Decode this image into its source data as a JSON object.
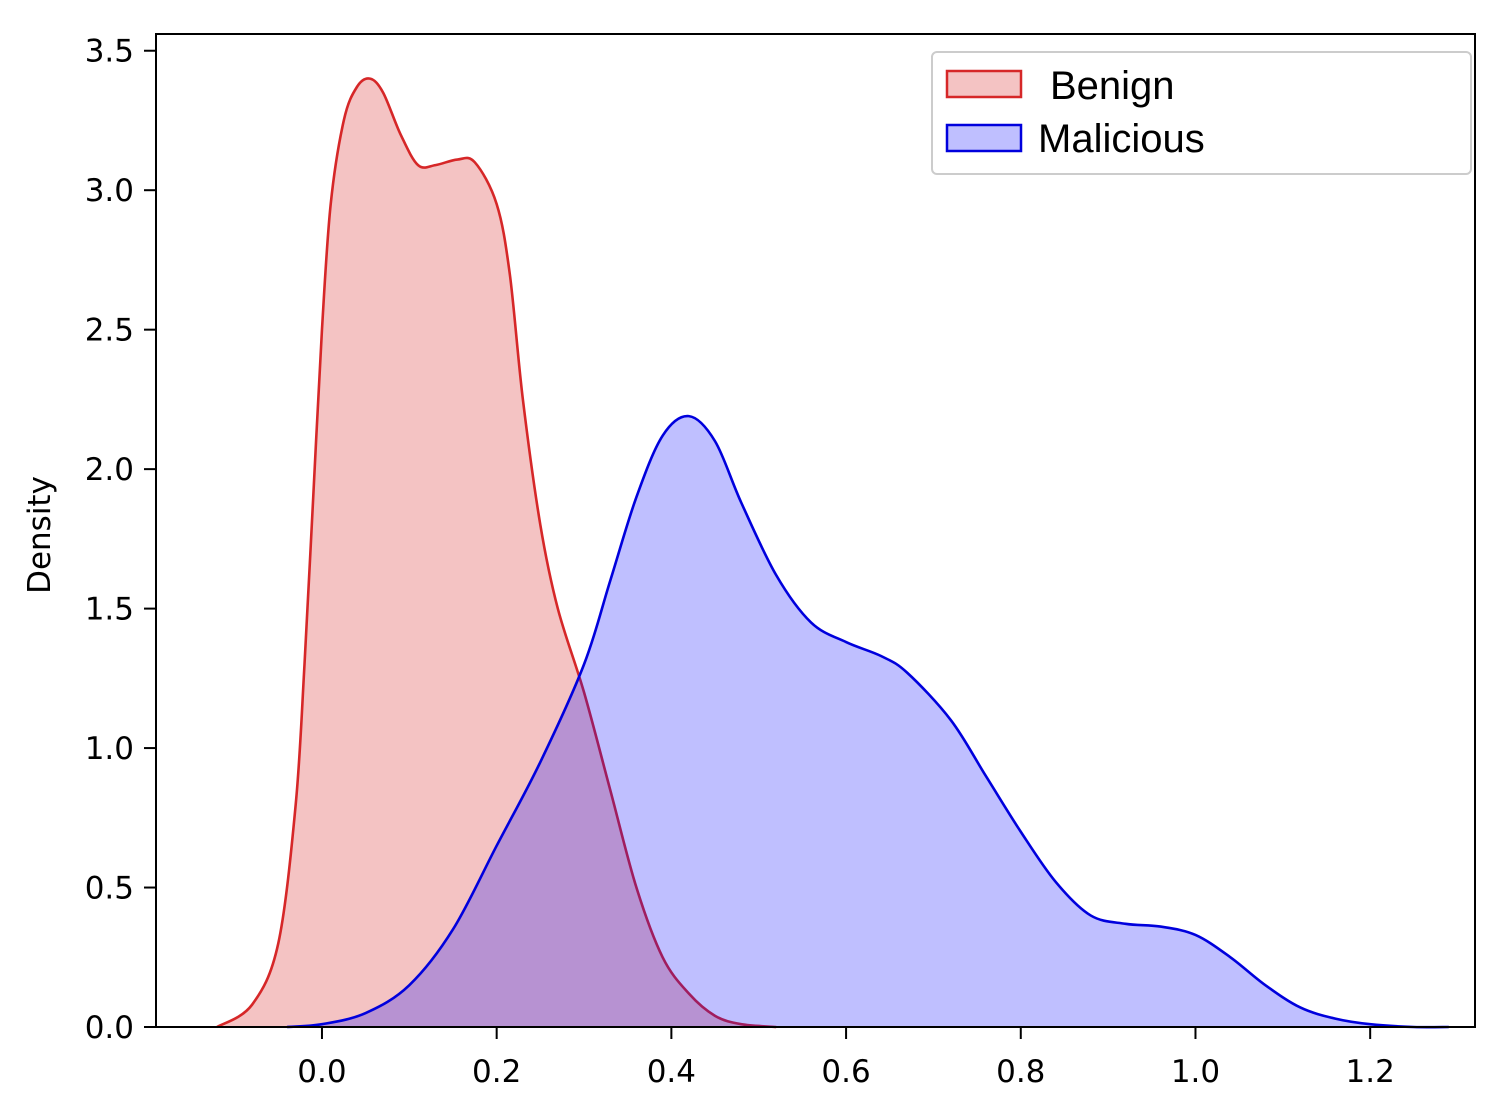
{
  "chart_data": {
    "type": "area",
    "title": "",
    "xlabel": "",
    "ylabel": "Density",
    "xlim": [
      -0.19,
      1.32
    ],
    "ylim": [
      0,
      3.56
    ],
    "x_ticks": [
      "0.0",
      "0.2",
      "0.4",
      "0.6",
      "0.8",
      "1.0",
      "1.2"
    ],
    "y_ticks": [
      "0.0",
      "0.5",
      "1.0",
      "1.5",
      "2.0",
      "2.5",
      "3.0",
      "3.5"
    ],
    "grid": false,
    "legend_position": "top-right",
    "series": [
      {
        "name": "Benign",
        "line_color": "#d62728",
        "fill_color": "#d62728",
        "points": [
          [
            -0.12,
            0.0
          ],
          [
            -0.08,
            0.08
          ],
          [
            -0.05,
            0.3
          ],
          [
            -0.03,
            0.8
          ],
          [
            -0.02,
            1.3
          ],
          [
            -0.01,
            1.9
          ],
          [
            0.0,
            2.5
          ],
          [
            0.01,
            2.95
          ],
          [
            0.025,
            3.25
          ],
          [
            0.04,
            3.37
          ],
          [
            0.055,
            3.4
          ],
          [
            0.07,
            3.35
          ],
          [
            0.09,
            3.2
          ],
          [
            0.11,
            3.09
          ],
          [
            0.13,
            3.09
          ],
          [
            0.155,
            3.11
          ],
          [
            0.175,
            3.1
          ],
          [
            0.2,
            2.95
          ],
          [
            0.215,
            2.7
          ],
          [
            0.23,
            2.25
          ],
          [
            0.25,
            1.8
          ],
          [
            0.27,
            1.5
          ],
          [
            0.3,
            1.2
          ],
          [
            0.33,
            0.85
          ],
          [
            0.36,
            0.5
          ],
          [
            0.39,
            0.25
          ],
          [
            0.42,
            0.12
          ],
          [
            0.45,
            0.04
          ],
          [
            0.48,
            0.01
          ],
          [
            0.52,
            0.0
          ]
        ]
      },
      {
        "name": "Malicious",
        "line_color": "#0000dd",
        "fill_color": "#0000ff",
        "points": [
          [
            -0.04,
            0.0
          ],
          [
            0.0,
            0.01
          ],
          [
            0.05,
            0.05
          ],
          [
            0.1,
            0.15
          ],
          [
            0.15,
            0.35
          ],
          [
            0.2,
            0.65
          ],
          [
            0.25,
            0.95
          ],
          [
            0.3,
            1.3
          ],
          [
            0.33,
            1.6
          ],
          [
            0.36,
            1.9
          ],
          [
            0.39,
            2.12
          ],
          [
            0.42,
            2.19
          ],
          [
            0.45,
            2.1
          ],
          [
            0.48,
            1.88
          ],
          [
            0.52,
            1.62
          ],
          [
            0.56,
            1.45
          ],
          [
            0.6,
            1.38
          ],
          [
            0.64,
            1.33
          ],
          [
            0.67,
            1.27
          ],
          [
            0.72,
            1.1
          ],
          [
            0.76,
            0.9
          ],
          [
            0.8,
            0.7
          ],
          [
            0.84,
            0.52
          ],
          [
            0.88,
            0.4
          ],
          [
            0.92,
            0.37
          ],
          [
            0.96,
            0.36
          ],
          [
            1.0,
            0.33
          ],
          [
            1.04,
            0.25
          ],
          [
            1.08,
            0.15
          ],
          [
            1.12,
            0.07
          ],
          [
            1.16,
            0.03
          ],
          [
            1.2,
            0.01
          ],
          [
            1.25,
            0.0
          ],
          [
            1.29,
            0.0
          ]
        ]
      }
    ]
  }
}
